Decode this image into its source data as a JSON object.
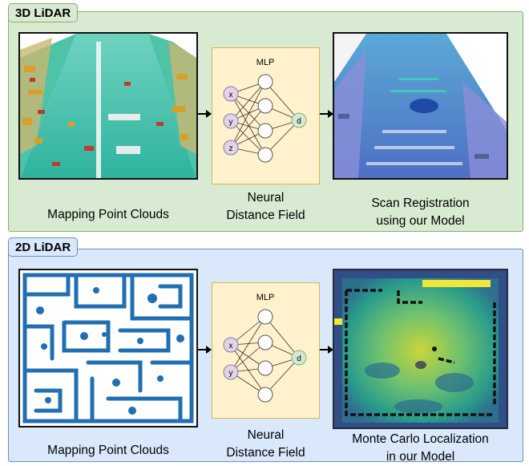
{
  "top": {
    "tag": "3D LiDAR",
    "mlp_label": "MLP",
    "inputs": [
      "x",
      "y",
      "z"
    ],
    "output": "d",
    "caption_left": "Mapping Point Clouds",
    "caption_mid": [
      "Neural",
      "Distance Field"
    ],
    "caption_right": [
      "Scan Registration",
      "using our Model"
    ]
  },
  "bottom": {
    "tag": "2D LiDAR",
    "mlp_label": "MLP",
    "inputs": [
      "x",
      "y"
    ],
    "output": "d",
    "caption_left": "Mapping Point Clouds",
    "caption_mid": [
      "Neural",
      "Distance Field"
    ],
    "caption_right": [
      "Monte Carlo Localization",
      "in our Model"
    ]
  },
  "colors": {
    "panel_3d": "#d9ead3",
    "panel_2d": "#dae8fc",
    "mlp_box": "#fff2cc",
    "input_node": "#e1d5e7",
    "output_node": "#d5e8d4",
    "map_blue": "#1f6fb2"
  }
}
